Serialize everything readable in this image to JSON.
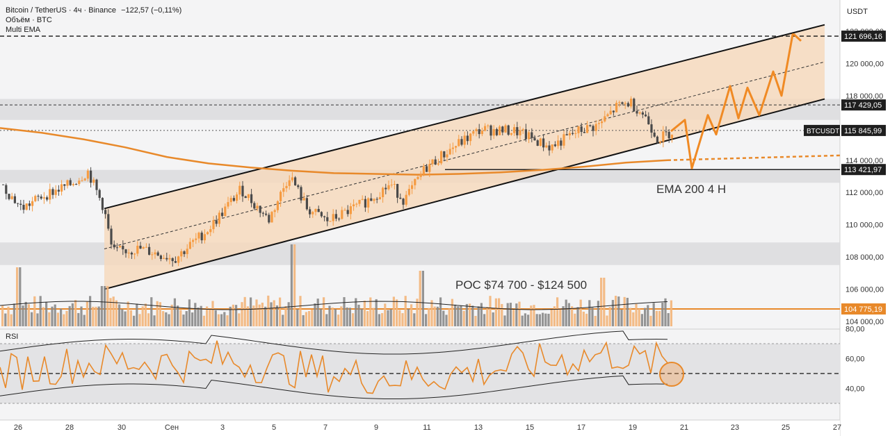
{
  "header": {
    "symbol_line": "Bitcoin / TetherUS · 4ч · Binance",
    "change": "−122,57 (−0,11%)",
    "volume_label": "Объём · BTC",
    "ema_label": "Multi EMA"
  },
  "price_axis": {
    "currency": "USDT",
    "ticks": [
      "122 000,00",
      "120 000,00",
      "118 000,00",
      "116 000,00",
      "114 000,00",
      "112 000,00",
      "110 000,00",
      "108 000,00",
      "106 000,00",
      "104 000,00"
    ],
    "badges": [
      {
        "text": "121 696,16",
        "style": "dark"
      },
      {
        "text": "117 429,05",
        "style": "dark"
      },
      {
        "text": "115 845,99",
        "style": "dark",
        "symbol": "BTCUSDT"
      },
      {
        "text": "113 421,97",
        "style": "dark"
      },
      {
        "text": "104 775,19",
        "style": "orange"
      }
    ]
  },
  "rsi": {
    "label": "RSI",
    "ticks": [
      "80,00",
      "60,00",
      "40,00"
    ]
  },
  "time_axis": {
    "labels": [
      "26",
      "28",
      "30",
      "Сен",
      "3",
      "5",
      "7",
      "9",
      "11",
      "13",
      "15",
      "17",
      "19",
      "21",
      "23",
      "25",
      "27"
    ]
  },
  "annotations": {
    "ema_text": "EMA 200 4 H",
    "poc_text": "POC $74 700 - $124 500"
  },
  "colors": {
    "up": "#f59b42",
    "down": "#4a4a4a",
    "channel_fill": "#f6d9bd",
    "zone": "#d9d9dc",
    "ema": "#e8892a",
    "projection": "#f08a24",
    "volume_up": "#f3b57a",
    "volume_down": "#8a8a8a"
  },
  "chart_data": {
    "type": "candlestick",
    "title": "Bitcoin / TetherUS · 4ч · Binance",
    "y_range": [
      104000,
      123000
    ],
    "current_price": 115845.99,
    "levels": [
      121696.16,
      117429.05,
      115845.99,
      113421.97,
      104775.19
    ],
    "channel": {
      "lower_start": 106000,
      "lower_end": 117800,
      "upper_start": 111000,
      "upper_end": 122400
    },
    "ema200_label": "EMA 200 4 H",
    "poc_label": "POC $74 700 - $124 500",
    "rsi_range": [
      20,
      80
    ],
    "rsi_levels": [
      70,
      50,
      30
    ]
  }
}
